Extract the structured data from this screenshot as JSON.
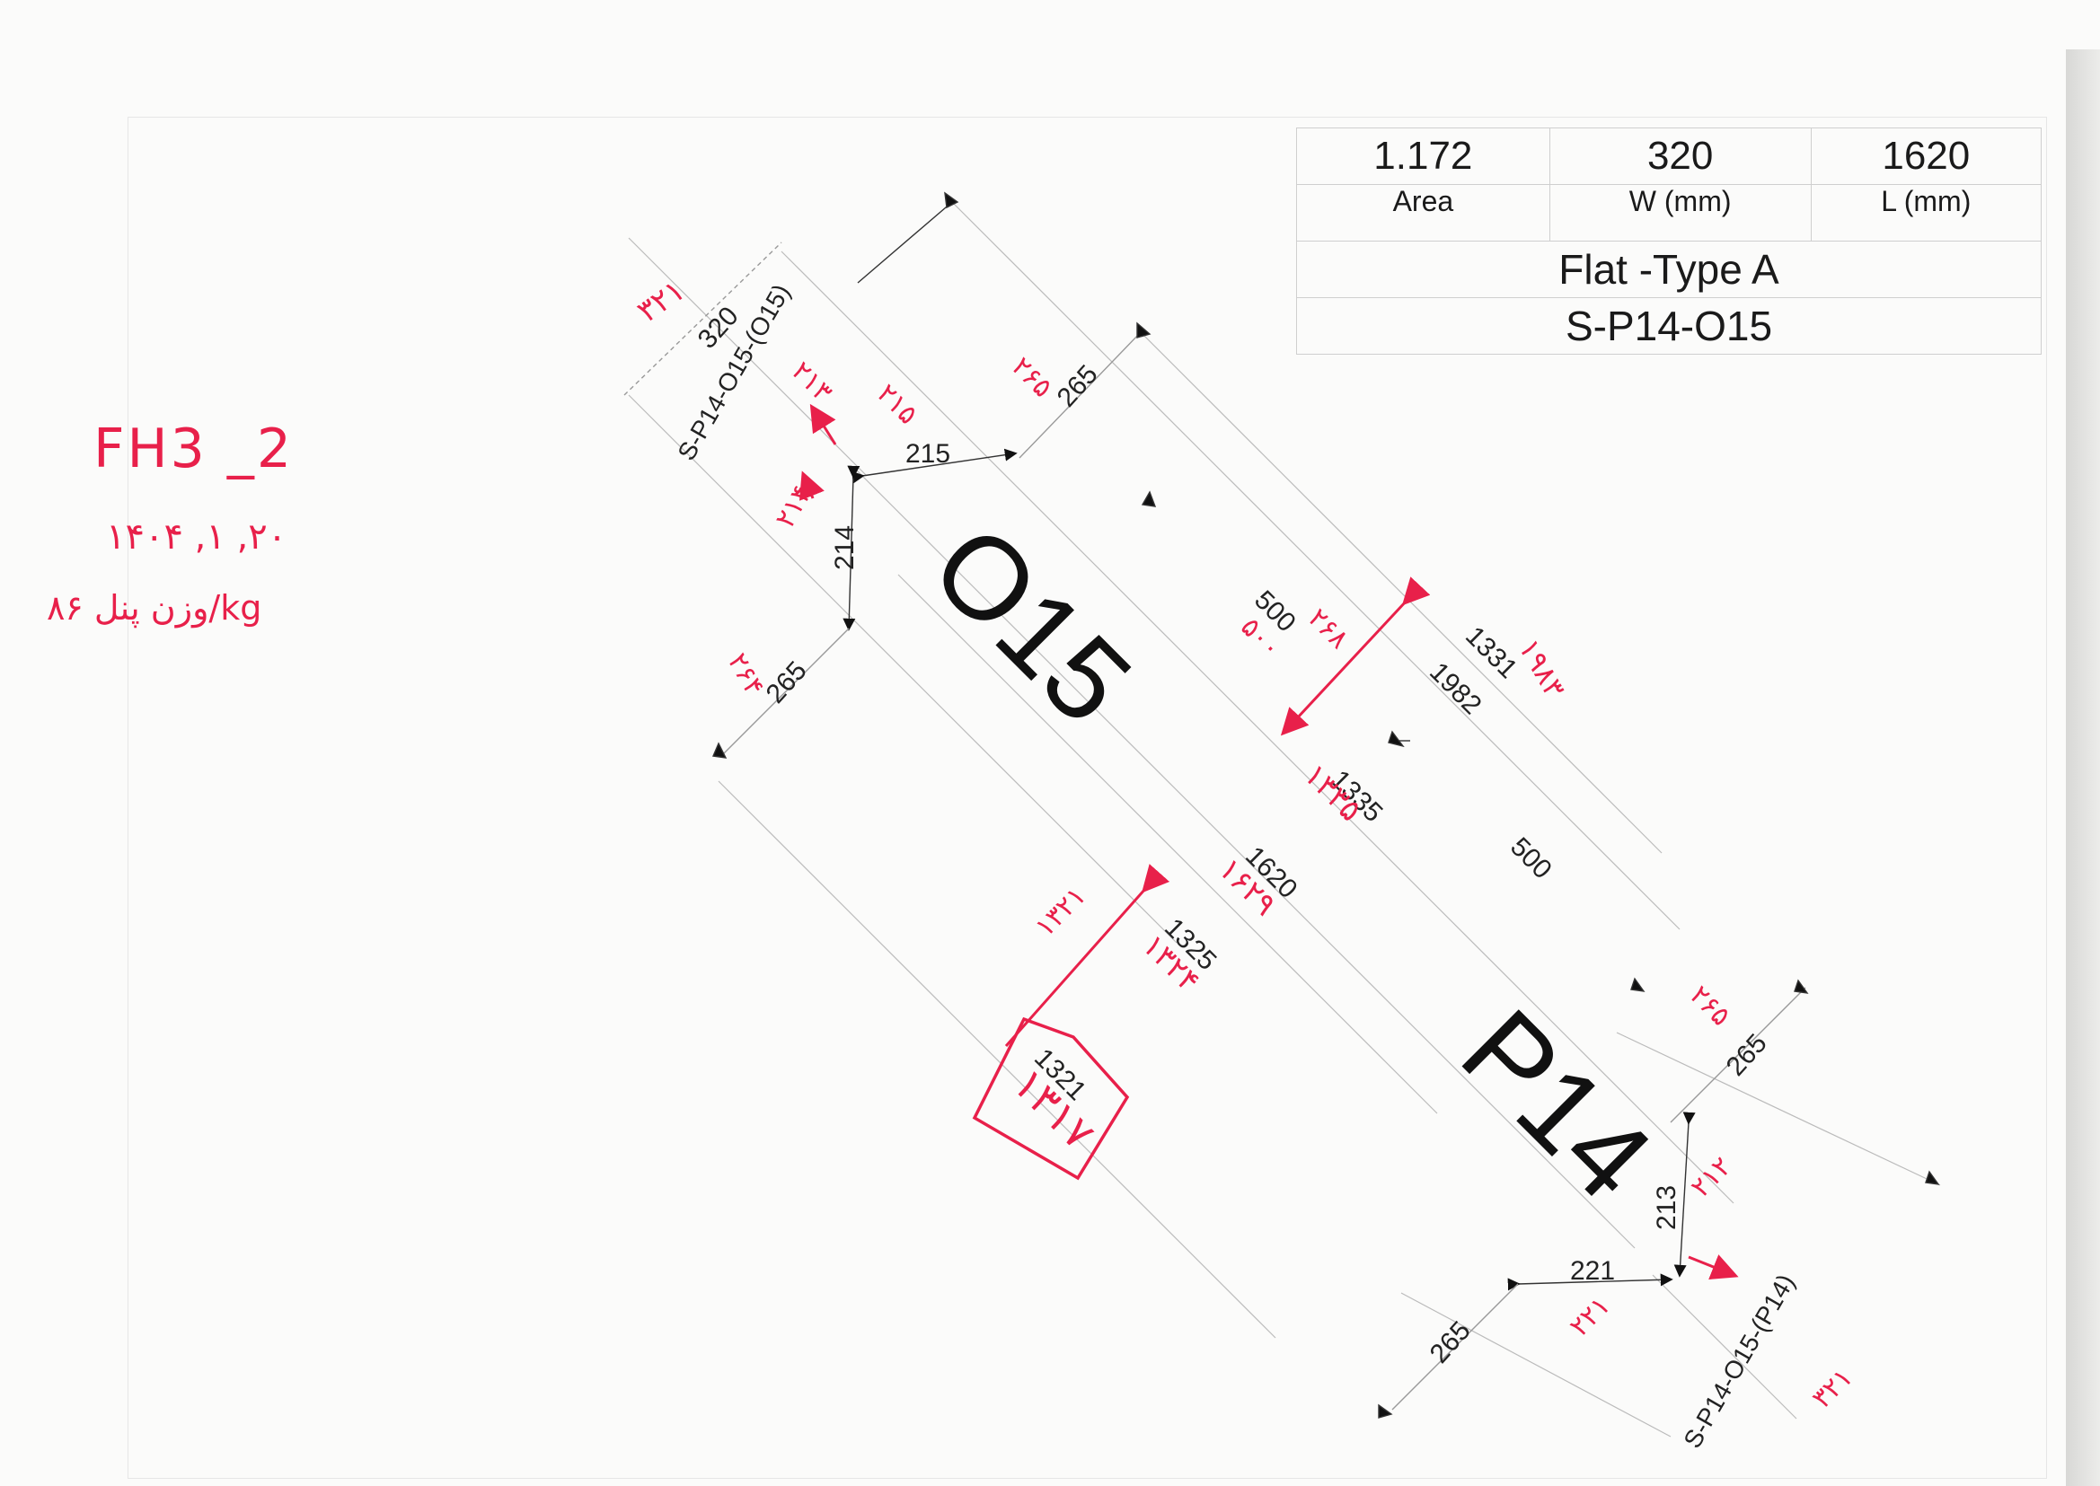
{
  "spec_table": {
    "area_value": "1.172",
    "width_value": "320",
    "length_value": "1620",
    "area_label": "Area",
    "width_label": "W (mm)",
    "length_label": "L (mm)",
    "type": "Flat -Type A",
    "code": "S-P14-O15"
  },
  "panel": {
    "label_top": "O15",
    "label_bottom": "P14",
    "code_top": "S-P14-O15-(O15)",
    "code_bottom": "S-P14-O15-(P14)"
  },
  "dimensions": {
    "d320": "320",
    "d265a": "265",
    "d215": "215",
    "d214": "214",
    "d265b": "265",
    "d500a": "500",
    "d1331": "1331",
    "d1982": "1982",
    "d1335": "1335",
    "d1620": "1620",
    "d500b": "500",
    "d1325": "1325",
    "d1321": "1321",
    "d265c": "265",
    "d213": "213",
    "d221": "221",
    "d265d": "265"
  },
  "handwriting": {
    "id": "FH3 _2",
    "date": "۱۴۰۴ ,۱ ,۲۰",
    "weight": "وزن پنل ۸۶/kg",
    "n_top_left": "۳۲۱",
    "n_a": "۲۶۵",
    "n_b": "۲۱۵",
    "n_c": "۲۱۳",
    "n_d": "۲۱۴",
    "n_e": "۲۶۴",
    "n_f": "۲۶۸",
    "n_g": "۱۳۳۵",
    "n_h": "۱۶۲۹",
    "n_i": "۱۳۲۴",
    "n_j": "۵۰۰",
    "n_k": "۱۳۲۱",
    "n_box": "۱۳۱۷",
    "n_l": "۲۶۵",
    "n_m": "۲۱۲",
    "n_n": "۲۲۱",
    "n_o": "۳۲۱",
    "n_p": "۱۹۸۳"
  }
}
